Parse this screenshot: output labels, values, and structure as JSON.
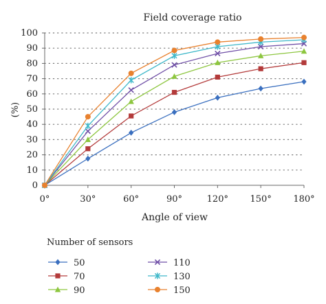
{
  "chart_data": {
    "type": "line",
    "title": "Field coverage ratio",
    "xlabel": "Angle of view",
    "ylabel": "(%)",
    "x": [
      0,
      30,
      60,
      90,
      120,
      150,
      180
    ],
    "x_tick_labels": [
      "0°",
      "30°",
      "60°",
      "90°",
      "120°",
      "150°",
      "180°"
    ],
    "ylim": [
      0,
      100
    ],
    "y_ticks": [
      0,
      10,
      20,
      30,
      40,
      50,
      60,
      70,
      80,
      90,
      100
    ],
    "y_tick_labels": [
      "0",
      "10",
      "20",
      "30",
      "40",
      "50",
      "60",
      "70",
      "80",
      "90",
      "100"
    ],
    "grid": "horizontal dotted",
    "legend_title": "Number of sensors",
    "legend_position": "bottom",
    "series": [
      {
        "name": "50",
        "marker": "diamond",
        "color": "#3a6fbf",
        "values": [
          0,
          17.5,
          34.5,
          48,
          57.5,
          63.5,
          68
        ]
      },
      {
        "name": "70",
        "marker": "square",
        "color": "#b33a3a",
        "values": [
          0,
          24,
          45.5,
          61,
          71,
          76.5,
          80.5
        ]
      },
      {
        "name": "90",
        "marker": "triangle",
        "color": "#8dc63f",
        "values": [
          0,
          30,
          55,
          71.5,
          80.5,
          85,
          88
        ]
      },
      {
        "name": "110",
        "marker": "x",
        "color": "#6f4ea6",
        "values": [
          0,
          35.5,
          62.5,
          79,
          86.5,
          91,
          93
        ]
      },
      {
        "name": "130",
        "marker": "star",
        "color": "#3fb8c9",
        "values": [
          0,
          39,
          69,
          85,
          91,
          94,
          95.5
        ]
      },
      {
        "name": "150",
        "marker": "circle",
        "color": "#e8812e",
        "values": [
          0,
          45,
          73.5,
          88.5,
          94,
          96,
          97
        ]
      }
    ]
  }
}
